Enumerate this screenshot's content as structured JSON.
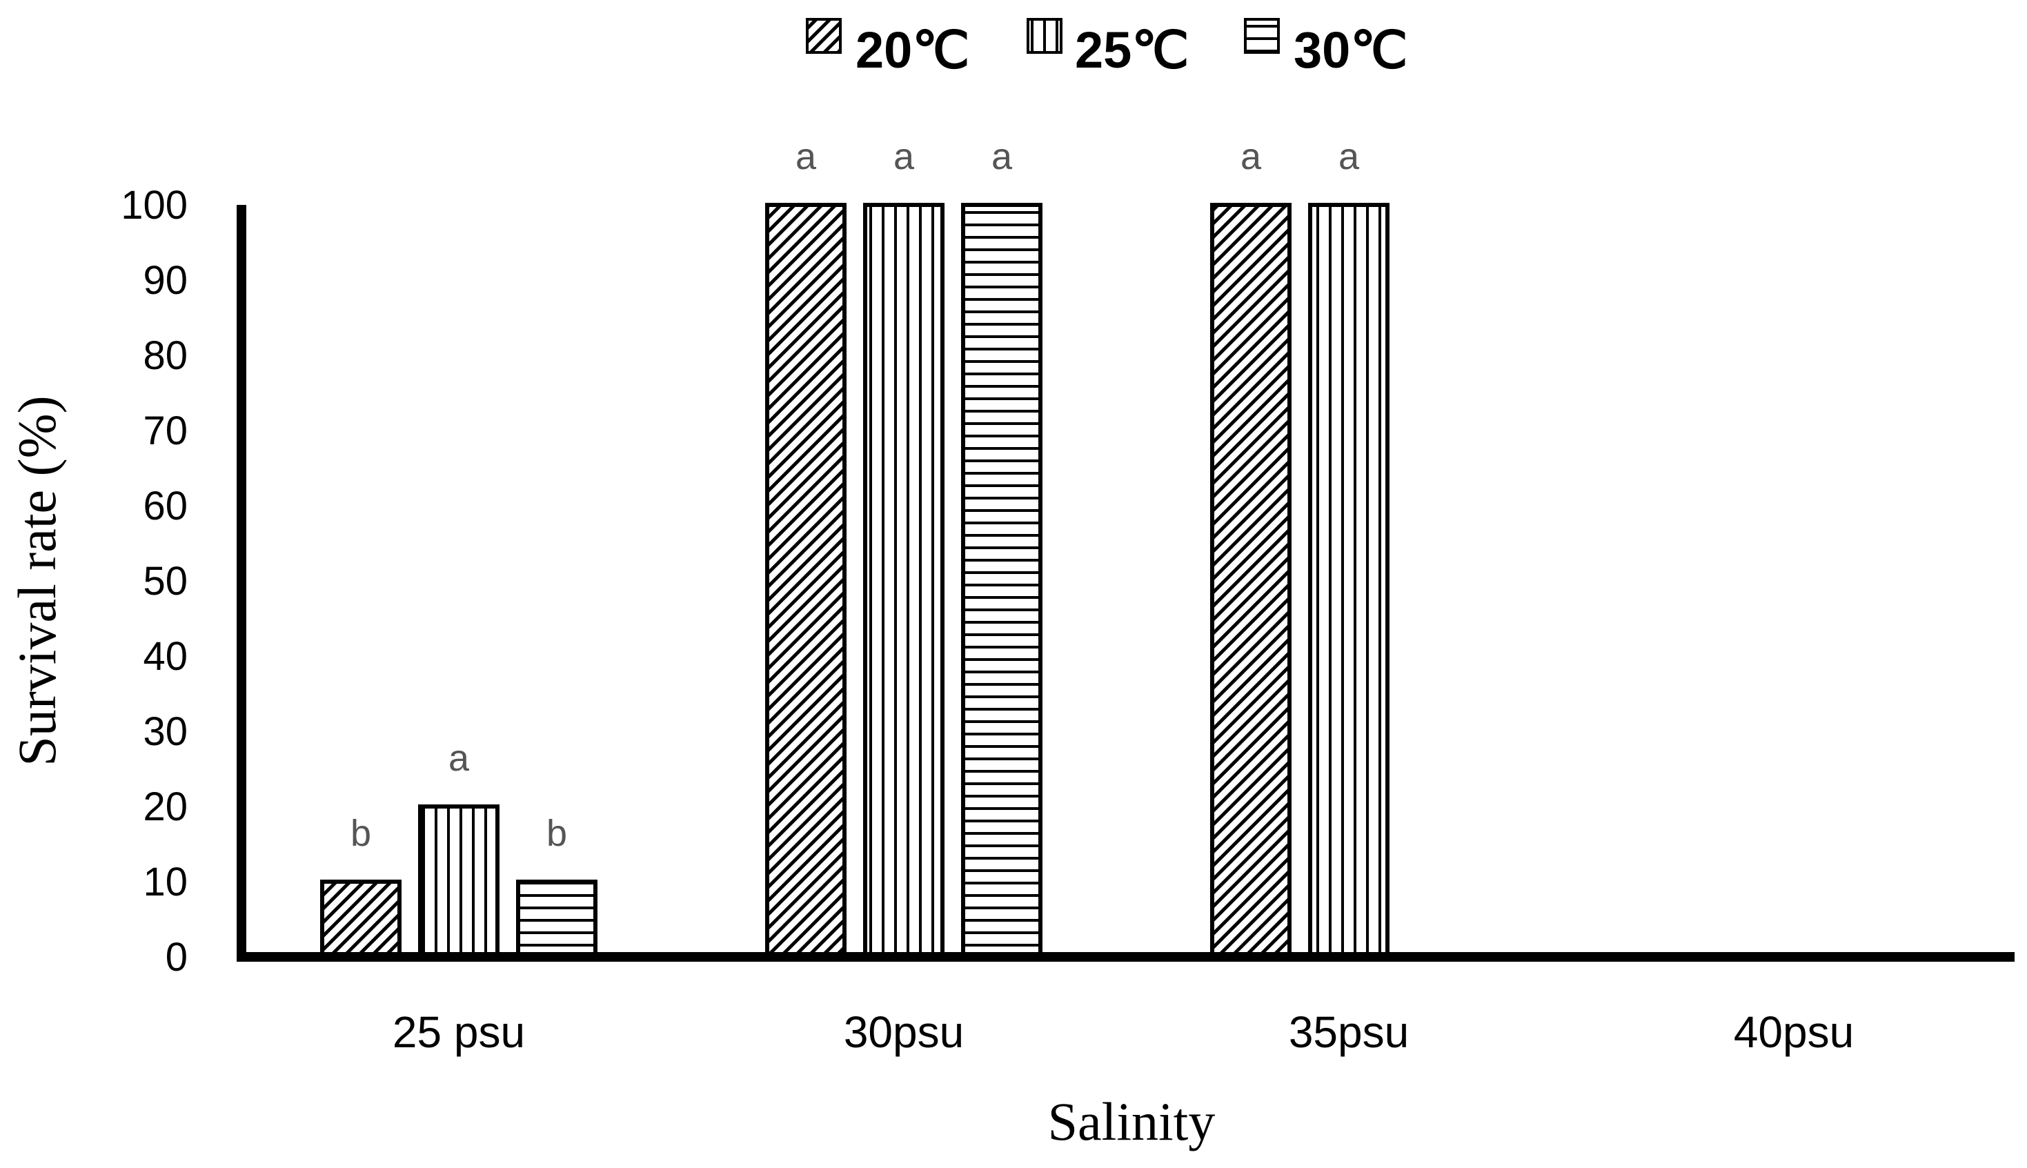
{
  "chart_data": {
    "type": "bar",
    "title": "",
    "xlabel": "Salinity",
    "ylabel": "Survival rate (%)",
    "ylim": [
      0,
      100
    ],
    "yticks": [
      0,
      10,
      20,
      30,
      40,
      50,
      60,
      70,
      80,
      90,
      100
    ],
    "categories": [
      "25 psu",
      "30psu",
      "35psu",
      "40psu"
    ],
    "series": [
      {
        "name": "20℃",
        "pattern": "diagonal",
        "values": [
          10,
          100,
          100,
          0
        ],
        "labels": [
          "b",
          "a",
          "a",
          ""
        ]
      },
      {
        "name": "25℃",
        "pattern": "vertical",
        "values": [
          20,
          100,
          100,
          0
        ],
        "labels": [
          "a",
          "a",
          "a",
          ""
        ]
      },
      {
        "name": "30℃",
        "pattern": "horizontal",
        "values": [
          10,
          100,
          0,
          0
        ],
        "labels": [
          "b",
          "a",
          "",
          ""
        ]
      }
    ],
    "legend_position": "top-center",
    "grid": false
  },
  "colors": {
    "bar_stroke": "#000000",
    "label": "#555555"
  }
}
